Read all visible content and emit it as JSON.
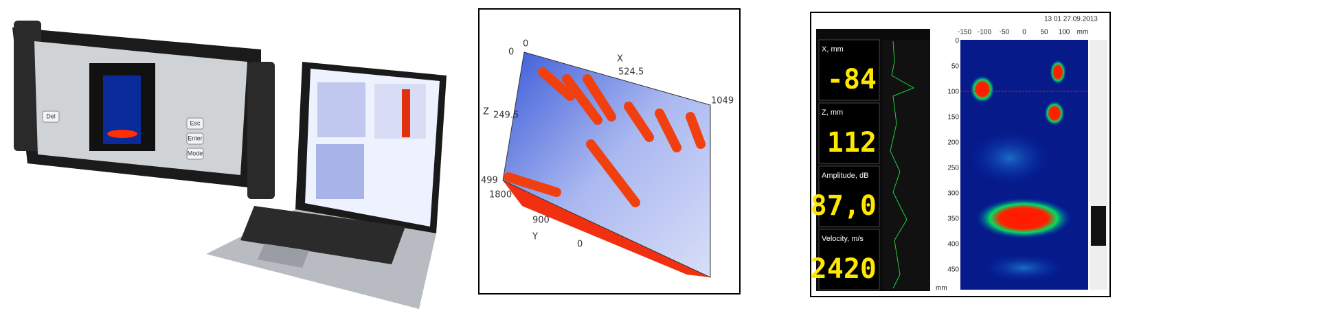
{
  "device": {
    "keys": [
      "Del",
      "Esc",
      "Enter",
      "Mode"
    ]
  },
  "plot3d": {
    "x_axis": "X",
    "x_mid": "524.5",
    "x_end": "1049",
    "x_start": "0",
    "origin": "0",
    "z_axis": "Z",
    "z_mid": "249.5",
    "z_end": "499",
    "y_end": "1800",
    "y_mid": "900",
    "y_axis": "Y",
    "y_start": "0"
  },
  "screen": {
    "timestamp": "13 01 27.09.2013",
    "readouts": [
      {
        "label": "X, mm",
        "value": "-84"
      },
      {
        "label": "Z, mm",
        "value": "112"
      },
      {
        "label": "Amplitude, dB",
        "value": "87,0"
      },
      {
        "label": "Velocity, m/s",
        "value": "2420"
      }
    ],
    "x_ticks": [
      "-150",
      "-100",
      "-50",
      "0",
      "50",
      "100"
    ],
    "x_unit": "mm",
    "y_ticks": [
      "0",
      "50",
      "100",
      "150",
      "200",
      "250",
      "300",
      "350",
      "400",
      "450"
    ],
    "y_unit": "mm"
  }
}
